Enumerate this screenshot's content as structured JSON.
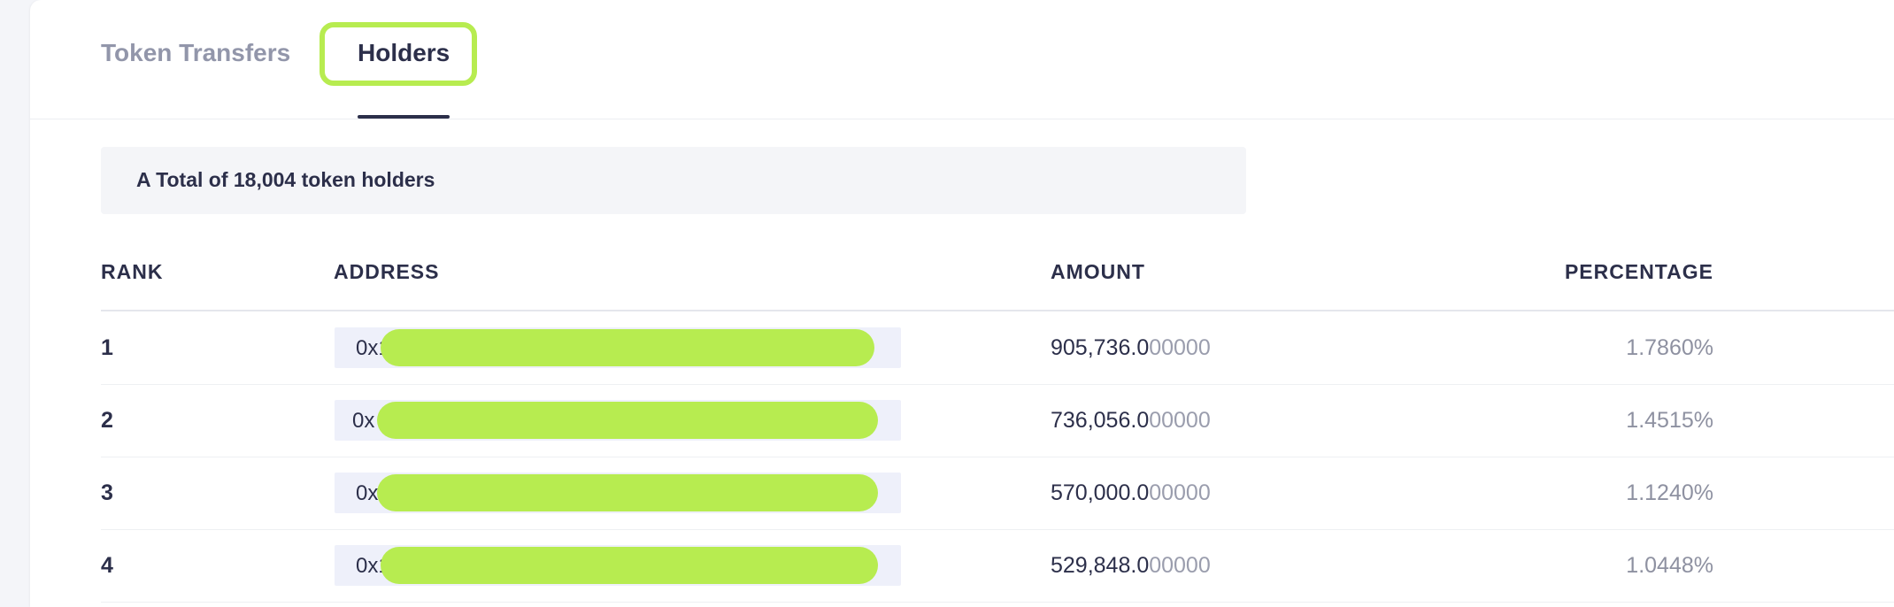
{
  "tabs": {
    "token_transfers": "Token Transfers",
    "holders": "Holders"
  },
  "summary": "A Total of 18,004 token holders",
  "table": {
    "headers": {
      "rank": "RANK",
      "address": "ADDRESS",
      "amount": "AMOUNT",
      "percentage": "PERCENTAGE"
    },
    "rows": [
      {
        "rank": "1",
        "address_visible": "0x1",
        "amount_int": "905,736.0",
        "amount_dec": "00000",
        "percentage": "1.7860%"
      },
      {
        "rank": "2",
        "address_visible": "0x",
        "amount_int": "736,056.0",
        "amount_dec": "00000",
        "percentage": "1.4515%"
      },
      {
        "rank": "3",
        "address_visible": "0x",
        "amount_int": "570,000.0",
        "amount_dec": "00000",
        "percentage": "1.1240%"
      },
      {
        "rank": "4",
        "address_visible": "0x1",
        "amount_int": "529,848.0",
        "amount_dec": "00000",
        "percentage": "1.0448%"
      }
    ]
  },
  "colors": {
    "highlight": "#b7ec50",
    "text_primary": "#2c2f4a",
    "text_muted": "#9296aa"
  }
}
